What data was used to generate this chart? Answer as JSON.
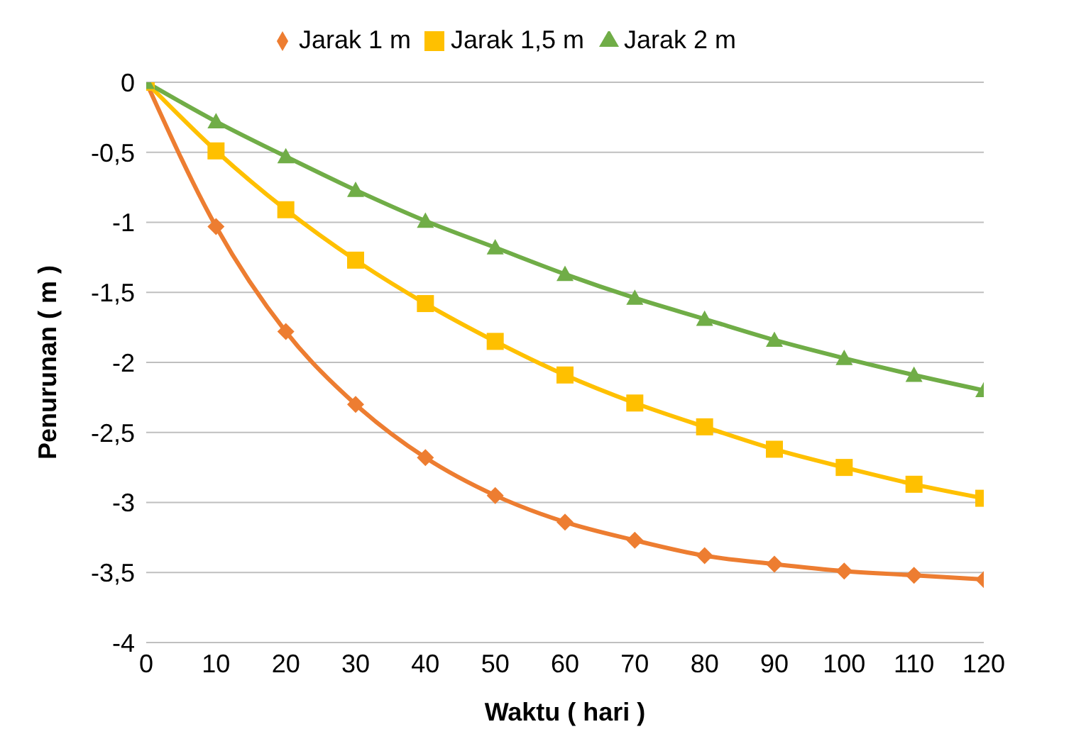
{
  "chart_data": {
    "type": "line",
    "xlabel": "Waktu ( hari )",
    "ylabel": "Penurunan ( m )",
    "x": [
      0,
      10,
      20,
      30,
      40,
      50,
      60,
      70,
      80,
      90,
      100,
      110,
      120
    ],
    "series": [
      {
        "name": "Jarak 1 m",
        "color": "#ed7d31",
        "marker": "diamond",
        "values": [
          0,
          -1.03,
          -1.78,
          -2.3,
          -2.68,
          -2.95,
          -3.14,
          -3.27,
          -3.38,
          -3.44,
          -3.49,
          -3.52,
          -3.55
        ]
      },
      {
        "name": "Jarak 1,5 m",
        "color": "#ffc000",
        "marker": "square",
        "values": [
          0,
          -0.49,
          -0.91,
          -1.27,
          -1.58,
          -1.85,
          -2.09,
          -2.29,
          -2.46,
          -2.62,
          -2.75,
          -2.87,
          -2.97
        ]
      },
      {
        "name": "Jarak 2 m",
        "color": "#70ad47",
        "marker": "triangle",
        "values": [
          0,
          -0.28,
          -0.53,
          -0.77,
          -0.99,
          -1.18,
          -1.37,
          -1.54,
          -1.69,
          -1.84,
          -1.97,
          -2.09,
          -2.2
        ]
      }
    ],
    "xlim": [
      0,
      120
    ],
    "xticks": [
      0,
      10,
      20,
      30,
      40,
      50,
      60,
      70,
      80,
      90,
      100,
      110,
      120
    ],
    "ylim": [
      -4,
      0
    ],
    "yticks": [
      -4,
      {
        "value": -3.5,
        "label": "-3,5"
      },
      -3,
      {
        "value": -2.5,
        "label": "-2,5"
      },
      -2,
      {
        "value": -1.5,
        "label": "-1,5"
      },
      -1,
      {
        "value": -0.5,
        "label": "-0,5"
      },
      0
    ],
    "grid": "y",
    "legend": "top"
  }
}
